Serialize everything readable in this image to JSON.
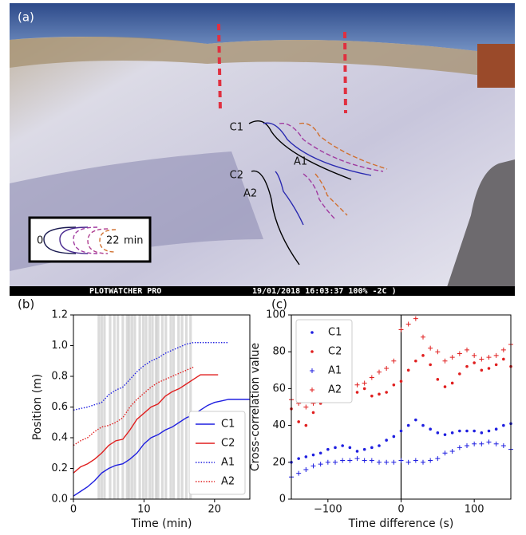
{
  "photo": {
    "label": "(a)",
    "curve_labels": [
      "C1",
      "A1",
      "C2",
      "A2"
    ],
    "legend_start": "0",
    "legend_end": "22",
    "legend_unit": "min",
    "brand": "PLOTWATCHER PRO",
    "stamp": "19/01/2018 16:03:37 100% -2C )"
  },
  "chart_data": [
    {
      "type": "line",
      "label": "(b)",
      "xlabel": "Time (min)",
      "ylabel": "Position (m)",
      "xlim": [
        0,
        25
      ],
      "xticks": [
        0,
        10,
        20
      ],
      "ylim": [
        0,
        1.2
      ],
      "yticks": [
        0.0,
        0.2,
        0.4,
        0.6,
        0.8,
        1.0,
        1.2
      ],
      "shaded_times": [
        3.6,
        4.0,
        4.4,
        5.2,
        5.8,
        6.3,
        7.0,
        7.6,
        7.9,
        8.3,
        8.7,
        9.4,
        9.9,
        10.3,
        10.8,
        11.2,
        11.7,
        12.0,
        12.6,
        13.1,
        13.8,
        14.2,
        14.9,
        15.4,
        16.0,
        16.6
      ],
      "legend": "lower right",
      "series": [
        {
          "name": "C1",
          "color": "#1f1fe0",
          "linestyle": "solid",
          "x": [
            0,
            1,
            2,
            3,
            4,
            5,
            6,
            7,
            8,
            9,
            10,
            11,
            12,
            13,
            14,
            15,
            16,
            17,
            18,
            19,
            20,
            21,
            22,
            23,
            24,
            25
          ],
          "values": [
            0.02,
            0.05,
            0.08,
            0.12,
            0.17,
            0.2,
            0.22,
            0.23,
            0.26,
            0.3,
            0.36,
            0.4,
            0.42,
            0.45,
            0.47,
            0.5,
            0.53,
            0.55,
            0.58,
            0.61,
            0.63,
            0.64,
            0.65,
            0.65,
            0.65,
            0.65
          ]
        },
        {
          "name": "C2",
          "color": "#e01f1f",
          "linestyle": "solid",
          "x": [
            0,
            1,
            2,
            3,
            4,
            5,
            6,
            7,
            8,
            9,
            10,
            11,
            12,
            13,
            14,
            15,
            16,
            17,
            18,
            19,
            20,
            20.5
          ],
          "values": [
            0.17,
            0.21,
            0.23,
            0.26,
            0.3,
            0.35,
            0.38,
            0.39,
            0.45,
            0.52,
            0.56,
            0.6,
            0.62,
            0.67,
            0.7,
            0.72,
            0.75,
            0.78,
            0.81,
            0.81,
            0.81,
            0.81
          ]
        },
        {
          "name": "A1",
          "color": "#1f1fe0",
          "linestyle": "dotted",
          "x": [
            0,
            2,
            4,
            5,
            6,
            7,
            8,
            9,
            10,
            11,
            12,
            13,
            14,
            15,
            16,
            17,
            18,
            19,
            20,
            21,
            22
          ],
          "values": [
            0.58,
            0.6,
            0.63,
            0.68,
            0.71,
            0.73,
            0.78,
            0.83,
            0.87,
            0.9,
            0.92,
            0.95,
            0.97,
            0.99,
            1.01,
            1.02,
            1.02,
            1.02,
            1.02,
            1.02,
            1.02
          ]
        },
        {
          "name": "A2",
          "color": "#e01f1f",
          "linestyle": "dotted",
          "x": [
            0,
            1,
            2,
            3,
            4,
            5,
            6,
            7,
            8,
            9,
            10,
            11,
            12,
            13,
            14,
            15,
            16,
            17
          ],
          "values": [
            0.35,
            0.38,
            0.4,
            0.44,
            0.47,
            0.48,
            0.5,
            0.53,
            0.6,
            0.65,
            0.69,
            0.73,
            0.76,
            0.78,
            0.8,
            0.82,
            0.84,
            0.86
          ]
        }
      ]
    },
    {
      "type": "scatter",
      "label": "(c)",
      "xlabel": "Time difference (s)",
      "ylabel": "Cross-correlation value",
      "xlim": [
        -150,
        150
      ],
      "xticks": [
        {
          "value": -100,
          "label": "−100"
        },
        0,
        100
      ],
      "ylim": [
        0,
        100
      ],
      "yticks": [
        0,
        20,
        40,
        60,
        80,
        100
      ],
      "vline": 0,
      "legend": "upper left",
      "x": [
        -150,
        -140,
        -130,
        -120,
        -110,
        -100,
        -90,
        -80,
        -70,
        -60,
        -50,
        -40,
        -30,
        -20,
        -10,
        0,
        10,
        20,
        30,
        40,
        50,
        60,
        70,
        80,
        90,
        100,
        110,
        120,
        130,
        140,
        150
      ],
      "series": [
        {
          "name": "C1",
          "color": "#1f1fe0",
          "marker": "dot",
          "values": [
            20,
            22,
            23,
            24,
            25,
            27,
            28,
            29,
            28,
            26,
            27,
            28,
            29,
            32,
            34,
            37,
            40,
            43,
            40,
            38,
            36,
            35,
            36,
            37,
            37,
            37,
            36,
            37,
            38,
            40,
            41
          ]
        },
        {
          "name": "C2",
          "color": "#e01f1f",
          "marker": "dot",
          "values": [
            49,
            42,
            40,
            47,
            52,
            56,
            55,
            53,
            54,
            58,
            60,
            56,
            57,
            58,
            62,
            64,
            70,
            75,
            78,
            73,
            65,
            61,
            63,
            68,
            72,
            74,
            70,
            71,
            73,
            76,
            72
          ]
        },
        {
          "name": "A1",
          "color": "#1f1fe0",
          "marker": "plus",
          "values": [
            12,
            14,
            16,
            18,
            19,
            20,
            20,
            21,
            21,
            22,
            21,
            21,
            20,
            20,
            20,
            21,
            20,
            21,
            20,
            21,
            22,
            25,
            26,
            28,
            29,
            30,
            30,
            31,
            30,
            29,
            27
          ]
        },
        {
          "name": "A2",
          "color": "#e01f1f",
          "marker": "plus",
          "values": [
            54,
            52,
            50,
            52,
            53,
            55,
            56,
            57,
            60,
            62,
            63,
            66,
            69,
            71,
            75,
            92,
            95,
            98,
            88,
            82,
            80,
            75,
            77,
            79,
            81,
            78,
            76,
            77,
            78,
            81,
            84
          ]
        }
      ]
    }
  ]
}
